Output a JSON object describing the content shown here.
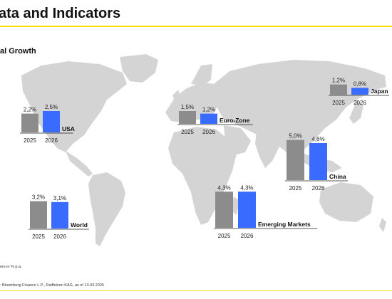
{
  "header": {
    "title": "ata and Indicators",
    "subtitle": "al Growth"
  },
  "footer": {
    "note": "ers in % p.a.",
    "source": ": Bloomberg Finance L.P., Raiffeisen KAG, as of 13.03.2026"
  },
  "colors": {
    "bar_2025": "#8c8c8c",
    "bar_2026": "#3a6bff",
    "accent": "#f5e000",
    "map": "#d4d4d4"
  },
  "chart_data": {
    "type": "bar",
    "categories": [
      "2025",
      "2026"
    ],
    "unit": "%",
    "groups": [
      {
        "name": "USA",
        "labels": [
          "2,2%",
          "2,5%"
        ],
        "values": [
          2.2,
          2.5
        ]
      },
      {
        "name": "Euro-Zone",
        "labels": [
          "1,5%",
          "1,2%"
        ],
        "values": [
          1.5,
          1.2
        ]
      },
      {
        "name": "Japan",
        "labels": [
          "1,2%",
          "0,8%"
        ],
        "values": [
          1.2,
          0.8
        ]
      },
      {
        "name": "China",
        "labels": [
          "5,0%",
          "4,6%"
        ],
        "values": [
          5.0,
          4.6
        ]
      },
      {
        "name": "Emerging Markets",
        "labels": [
          "4,3%",
          "4,3%"
        ],
        "values": [
          4.3,
          4.3
        ]
      },
      {
        "name": "World",
        "labels": [
          "3,2%",
          "3,1%"
        ],
        "values": [
          3.2,
          3.1
        ]
      }
    ]
  }
}
